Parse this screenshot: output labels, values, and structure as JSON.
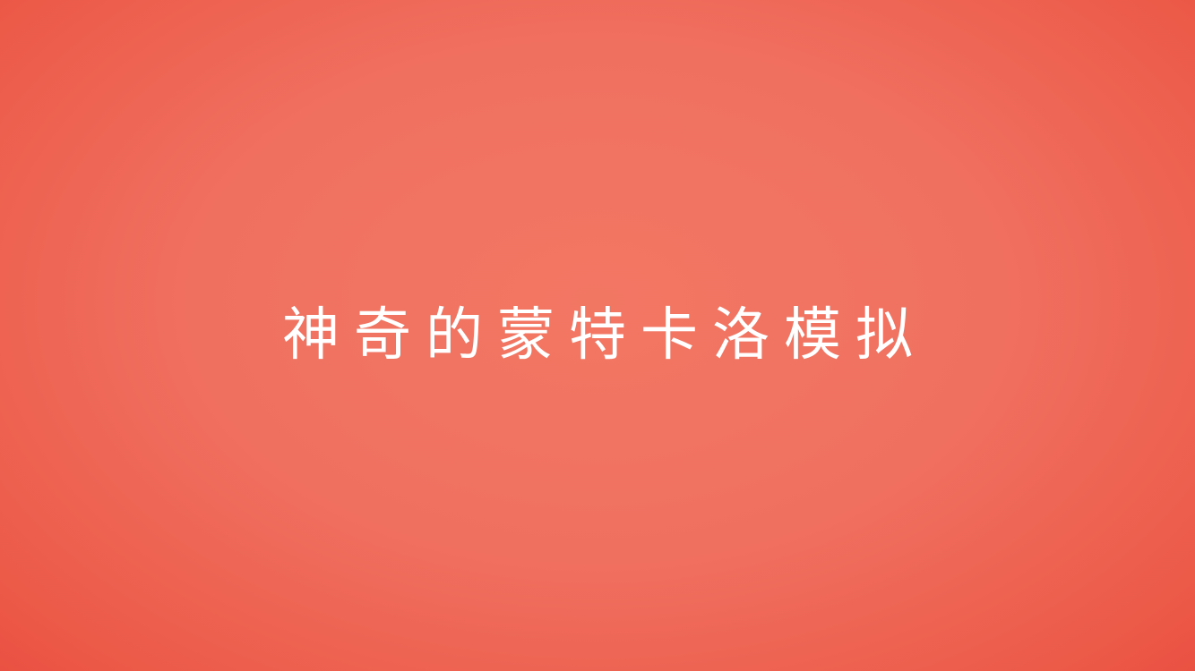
{
  "slide": {
    "title": "神奇的蒙特卡洛模拟",
    "background_colors": [
      "#f27763",
      "#e84a3e"
    ],
    "text_color": "#ffffff"
  }
}
